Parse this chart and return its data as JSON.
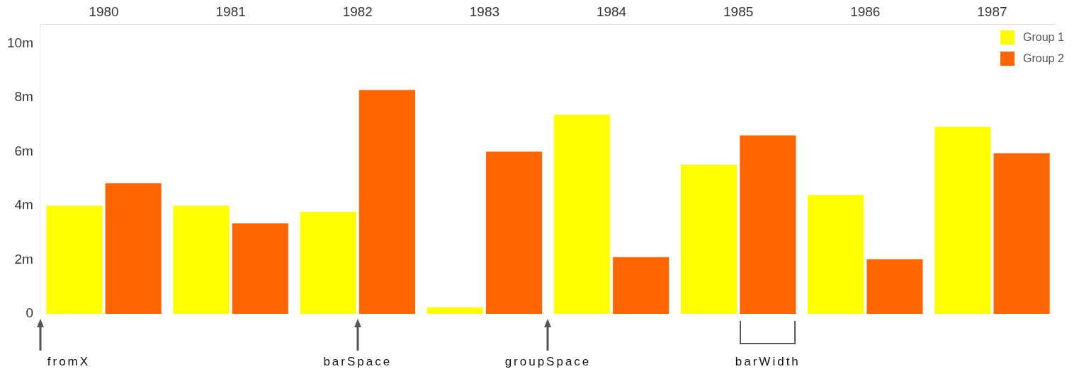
{
  "chart_data": {
    "type": "bar",
    "categories": [
      "1980",
      "1981",
      "1982",
      "1983",
      "1984",
      "1985",
      "1986",
      "1987"
    ],
    "series": [
      {
        "name": "Group 1",
        "color": "#ffff00",
        "values": [
          4.0,
          4.0,
          3.77,
          0.24,
          7.37,
          5.52,
          4.4,
          6.92
        ]
      },
      {
        "name": "Group 2",
        "color": "#ff6600",
        "values": [
          4.83,
          3.35,
          8.28,
          6.0,
          2.1,
          6.6,
          2.02,
          5.94
        ]
      }
    ],
    "ylim": [
      0,
      10.7
    ],
    "yticks": [
      0,
      {
        "value": 2,
        "label": "2m"
      },
      {
        "value": 4,
        "label": "4m"
      },
      {
        "value": 6,
        "label": "6m"
      },
      {
        "value": 8,
        "label": "8m"
      },
      {
        "value": 10,
        "label": "10m"
      }
    ],
    "grid": false,
    "legend": "top right",
    "annotations": [
      "fromX",
      "barSpace",
      "groupSpace",
      "barWidth"
    ]
  }
}
